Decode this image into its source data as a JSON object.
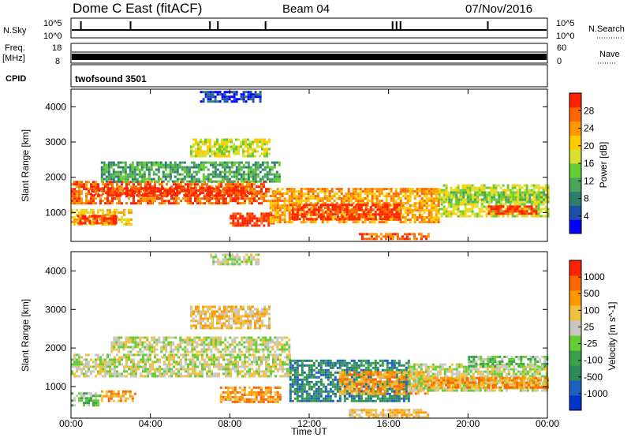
{
  "header": {
    "title": "Dome C East (fitACF)",
    "beam": "Beam 04",
    "date": "07/Nov/2016"
  },
  "strips": {
    "nsky_label": "N.Sky",
    "nsky_ticks": [
      "10^5",
      "10^0"
    ],
    "nsearch_label": "N.Search",
    "nsearch_ticks": [
      "10^5",
      "10^0"
    ],
    "freq_label": "Freq.",
    "freq_unit": "[MHz]",
    "freq_ticks": [
      "18",
      "8"
    ],
    "nave_label": "Nave",
    "nave_ticks": [
      "60",
      "0"
    ],
    "cpid_label": "CPID",
    "cpid_value": "twofsound 3501"
  },
  "colorbars": {
    "power": {
      "label": "Power [dB]",
      "ticks": [
        "28",
        "24",
        "20",
        "16",
        "12",
        "8",
        "4"
      ],
      "colors": [
        "#0000ff",
        "#1e4fa8",
        "#2e7d6e",
        "#4aa55a",
        "#66cc33",
        "#d9e030",
        "#ffcc00",
        "#ff9900",
        "#ff6600",
        "#ff2200"
      ]
    },
    "velocity": {
      "label": "Velocity [m s^-1]",
      "ticks": [
        "1000",
        "500",
        "100",
        "25",
        "-25",
        "-100",
        "-500",
        "-1000"
      ],
      "colors": [
        "#0033cc",
        "#1f5fbf",
        "#2e8b57",
        "#3aa04a",
        "#66cc33",
        "#c8c8c0",
        "#f0c040",
        "#ff9900",
        "#ff6600",
        "#ff2200"
      ]
    }
  },
  "chart_data": {
    "type": "heatmap",
    "xlabel": "Time UT",
    "ylabel": "Slant Range [km]",
    "x_ticks": [
      "00:00",
      "04:00",
      "08:00",
      "12:00",
      "16:00",
      "20:00",
      "00:00"
    ],
    "y_ticks": [
      1000,
      2000,
      3000,
      4000
    ],
    "x_range_hours": [
      0,
      24
    ],
    "y_range_km": [
      180,
      4500
    ],
    "panels": [
      {
        "name": "power",
        "bands": [
          {
            "t0": 0,
            "t1": 10.0,
            "r0": 1280,
            "r1": 1900,
            "level": 8
          },
          {
            "t0": 1.0,
            "t1": 9.0,
            "r0": 1480,
            "r1": 1720,
            "level": 9
          },
          {
            "t0": 0,
            "t1": 3.0,
            "r0": 640,
            "r1": 1100,
            "level": 6
          },
          {
            "t0": 0.3,
            "t1": 2.3,
            "r0": 700,
            "r1": 930,
            "level": 9
          },
          {
            "t0": 8.0,
            "t1": 10.2,
            "r0": 640,
            "r1": 1000,
            "level": 9
          },
          {
            "t0": 10.0,
            "t1": 18.5,
            "r0": 700,
            "r1": 1700,
            "level": 7
          },
          {
            "t0": 11.0,
            "t1": 16.5,
            "r0": 780,
            "r1": 1250,
            "level": 9
          },
          {
            "t0": 18.5,
            "t1": 24,
            "r0": 900,
            "r1": 1800,
            "level": 5
          },
          {
            "t0": 21.0,
            "t1": 23.5,
            "r0": 950,
            "r1": 1200,
            "level": 9
          },
          {
            "t0": 1.5,
            "t1": 10.5,
            "r0": 1900,
            "r1": 2450,
            "level": 3
          },
          {
            "t0": 6.0,
            "t1": 10.0,
            "r0": 2600,
            "r1": 3100,
            "level": 5
          },
          {
            "t0": 6.5,
            "t1": 9.5,
            "r0": 4150,
            "r1": 4450,
            "level": 1
          },
          {
            "t0": 14.5,
            "t1": 18.0,
            "r0": 250,
            "r1": 420,
            "level": 8
          },
          {
            "t0": 19.0,
            "t1": 24,
            "r0": 1300,
            "r1": 1600,
            "level": 4
          }
        ]
      },
      {
        "name": "velocity",
        "bands": [
          {
            "t0": 0,
            "t1": 11.0,
            "r0": 1250,
            "r1": 1850,
            "level": 5
          },
          {
            "t0": 2.0,
            "t1": 11.0,
            "r0": 1900,
            "r1": 2300,
            "level": 5
          },
          {
            "t0": 0,
            "t1": 1.5,
            "r0": 500,
            "r1": 850,
            "level": 4
          },
          {
            "t0": 1.5,
            "t1": 3.2,
            "r0": 600,
            "r1": 900,
            "level": 7
          },
          {
            "t0": 7.5,
            "t1": 10.5,
            "r0": 600,
            "r1": 1000,
            "level": 7
          },
          {
            "t0": 11.0,
            "t1": 17.0,
            "r0": 600,
            "r1": 1700,
            "level": 2
          },
          {
            "t0": 13.5,
            "t1": 18.0,
            "r0": 800,
            "r1": 1400,
            "level": 7
          },
          {
            "t0": 17.0,
            "t1": 24,
            "r0": 900,
            "r1": 1600,
            "level": 5
          },
          {
            "t0": 18.0,
            "t1": 24,
            "r0": 1000,
            "r1": 1250,
            "level": 7
          },
          {
            "t0": 6.0,
            "t1": 10.0,
            "r0": 2500,
            "r1": 3100,
            "level": 6
          },
          {
            "t0": 14.0,
            "t1": 18.0,
            "r0": 200,
            "r1": 420,
            "level": 6
          },
          {
            "t0": 20.0,
            "t1": 24,
            "r0": 1500,
            "r1": 1800,
            "level": 4
          },
          {
            "t0": 7.0,
            "t1": 9.5,
            "r0": 4150,
            "r1": 4450,
            "level": 5
          }
        ]
      }
    ]
  }
}
